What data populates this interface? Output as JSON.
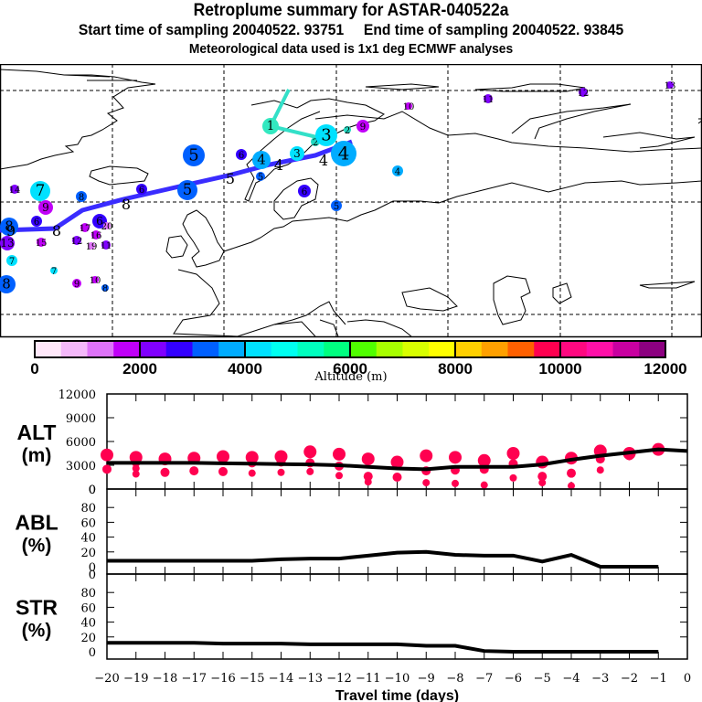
{
  "header": {
    "title": "Retroplume summary for ASTAR-040522a",
    "subtitle": "Start time of sampling 20040522. 93751     End time of sampling 20040522. 93845",
    "met_note": "Meteorological data used is 1x1 deg ECMWF analyses"
  },
  "colorbar": {
    "label": "Altitude (m)",
    "tick_labels": [
      "0",
      "2000",
      "4000",
      "6000",
      "8000",
      "10000",
      "12000"
    ],
    "range": [
      0,
      12000
    ],
    "colors": [
      "#ffe8fa",
      "#f4b8fa",
      "#de73f8",
      "#c000f8",
      "#8000ff",
      "#3300ff",
      "#0060ff",
      "#00acff",
      "#00e1ff",
      "#00fff0",
      "#00ffbe",
      "#00ff80",
      "#50ff00",
      "#a8ff00",
      "#d8ff00",
      "#ffff00",
      "#ffd000",
      "#ffa000",
      "#ff6000",
      "#ff0050",
      "#ff0880",
      "#ff10a8",
      "#c800a0",
      "#8c0080"
    ]
  },
  "map": {
    "trajectory_colors": {
      "recent": "#33e0c8",
      "older": "#3a2cff"
    },
    "labels": [
      {
        "t": "1",
        "c": "#33e8c0",
        "r": 1
      },
      {
        "t": "2",
        "c": "#22d8c0",
        "r": 0
      },
      {
        "t": "3",
        "c": "#00e1ff",
        "r": 1
      },
      {
        "t": "4",
        "c": "#00acff",
        "r": 1
      },
      {
        "t": "5",
        "c": "#0060ff",
        "r": 1
      },
      {
        "t": "6",
        "c": "#3300ff",
        "r": 1
      },
      {
        "t": "7",
        "c": "#00e1ff",
        "r": 1
      },
      {
        "t": "8",
        "c": "#0060ff",
        "r": 1
      },
      {
        "t": "9",
        "c": "#c000f8",
        "r": 1
      },
      {
        "t": "10",
        "c": "#c000f8",
        "r": 0
      },
      {
        "t": "11",
        "c": "#8000ff",
        "r": 0
      },
      {
        "t": "12",
        "c": "#8000ff",
        "r": 0
      },
      {
        "t": "13",
        "c": "#8000ff",
        "r": 0
      },
      {
        "t": "14",
        "c": "#8000ff",
        "r": 0
      },
      {
        "t": "15",
        "c": "#c000f8",
        "r": 0
      },
      {
        "t": "16",
        "c": "#c000f8",
        "r": 0
      },
      {
        "t": "17",
        "c": "#c000f8",
        "r": 0
      },
      {
        "t": "19",
        "c": "#de73f8",
        "r": 0
      },
      {
        "t": "20",
        "c": "#de73f8",
        "r": 0
      }
    ]
  },
  "chart_data": [
    {
      "type": "scatter",
      "panel": "ALT",
      "ylabel": "ALT\n(m)",
      "ylabel_line1": "ALT",
      "ylabel_line2": "(m)",
      "ylim": [
        0,
        12000
      ],
      "yticks": [
        "0",
        "3000",
        "6000",
        "9000",
        "12000"
      ],
      "xlim": [
        -20,
        0
      ],
      "line_color": "#000000",
      "cluster_color": "#ff0050",
      "mean_line": {
        "x": [
          -20,
          -19,
          -18,
          -17,
          -16,
          -15,
          -14,
          -13,
          -12,
          -11,
          -10,
          -9,
          -8,
          -7,
          -6,
          -5,
          -4,
          -3,
          -2,
          -1,
          0
        ],
        "y": [
          3300,
          3300,
          3300,
          3300,
          3250,
          3200,
          3150,
          3100,
          3000,
          2800,
          2600,
          2500,
          2800,
          2800,
          2800,
          3100,
          3700,
          4200,
          4600,
          5000,
          4800
        ]
      },
      "clusters": [
        {
          "x": -20,
          "y": [
            4300,
            2500
          ]
        },
        {
          "x": -19,
          "y": [
            4000,
            3400,
            2600,
            1900
          ]
        },
        {
          "x": -18,
          "y": [
            3800,
            2100
          ]
        },
        {
          "x": -17,
          "y": [
            3900,
            2300
          ]
        },
        {
          "x": -16,
          "y": [
            4100,
            2200
          ]
        },
        {
          "x": -15,
          "y": [
            4000,
            3300,
            2000
          ]
        },
        {
          "x": -14,
          "y": [
            4100,
            3400,
            2100
          ]
        },
        {
          "x": -13,
          "y": [
            4700,
            3300,
            2200
          ]
        },
        {
          "x": -12,
          "y": [
            4400,
            2900,
            1700
          ]
        },
        {
          "x": -11,
          "y": [
            3800,
            1600,
            900
          ]
        },
        {
          "x": -10,
          "y": [
            3400,
            1500
          ]
        },
        {
          "x": -9,
          "y": [
            4200,
            2300,
            800
          ]
        },
        {
          "x": -8,
          "y": [
            4000,
            2400,
            700
          ]
        },
        {
          "x": -7,
          "y": [
            3600,
            2500,
            500
          ]
        },
        {
          "x": -6,
          "y": [
            4500,
            3200,
            1400
          ]
        },
        {
          "x": -5,
          "y": [
            3400,
            1600,
            800
          ]
        },
        {
          "x": -4,
          "y": [
            3900,
            2000,
            400
          ]
        },
        {
          "x": -3,
          "y": [
            4800,
            3800,
            2400
          ]
        },
        {
          "x": -2,
          "y": [
            4500,
            4200
          ]
        },
        {
          "x": -1,
          "y": [
            5000
          ]
        }
      ]
    },
    {
      "type": "line",
      "panel": "ABL",
      "ylabel_line1": "ABL",
      "ylabel_line2": "(%)",
      "ylim": [
        0,
        100
      ],
      "yticks": [
        "0",
        "20",
        "40",
        "60",
        "80"
      ],
      "xlim": [
        -20,
        0
      ],
      "x": [
        -20,
        -19,
        -18,
        -17,
        -16,
        -15,
        -14,
        -13,
        -12,
        -11,
        -10,
        -9,
        -8,
        -7,
        -6,
        -5,
        -4,
        -3,
        -2,
        -1
      ],
      "y": [
        8,
        8,
        8,
        8,
        8,
        8,
        10,
        11,
        11,
        15,
        19,
        20,
        16,
        15,
        15,
        7,
        16,
        0,
        0,
        0
      ]
    },
    {
      "type": "line",
      "panel": "STR",
      "ylabel_line1": "STR",
      "ylabel_line2": "(%)",
      "ylim": [
        0,
        100
      ],
      "yticks": [
        "0",
        "20",
        "40",
        "60",
        "80"
      ],
      "xlim": [
        -20,
        0
      ],
      "x": [
        -20,
        -19,
        -18,
        -17,
        -16,
        -15,
        -14,
        -13,
        -12,
        -11,
        -10,
        -9,
        -8,
        -7,
        -6,
        -5,
        -4,
        -3,
        -2,
        -1
      ],
      "y": [
        12,
        12,
        12,
        12,
        11,
        11,
        11,
        10,
        10,
        10,
        10,
        8,
        8,
        1,
        0,
        0,
        0,
        0,
        0,
        0
      ],
      "xlabel": "Travel time (days)",
      "xticks": [
        "−20",
        "−19",
        "−18",
        "−17",
        "−16",
        "−15",
        "−14",
        "−13",
        "−12",
        "−11",
        "−10",
        "−9",
        "−8",
        "−7",
        "−6",
        "−5",
        "−4",
        "−3",
        "−2",
        "−1",
        "0"
      ]
    }
  ]
}
